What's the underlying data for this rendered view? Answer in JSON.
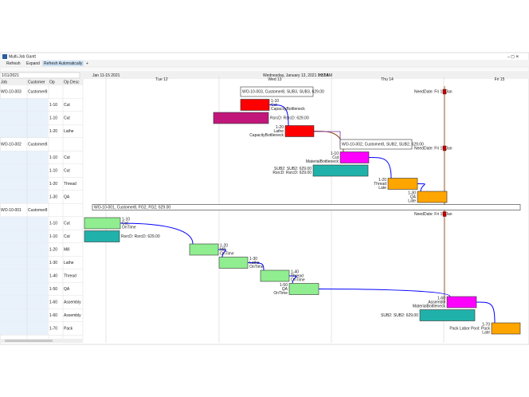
{
  "window": {
    "title": "Multi-Job Gantt"
  },
  "toolbar": [
    "Refresh",
    "Expand",
    "Refresh Automatically",
    "+"
  ],
  "date": "1/11/2021",
  "timeline": {
    "range": "Jan 11-15 2021",
    "days": [
      "Tue 12",
      "Wed 13",
      "Thu 14",
      "Fri 15"
    ],
    "now": "Wednesday, January 13, 2021 9:22 AM",
    "zoom": "Hr:58"
  },
  "grid": {
    "columns": [
      "Job",
      "Customer",
      "Op",
      "Op Desc"
    ],
    "rows": [
      {
        "job": "WO-10-003",
        "customer": "Customer8"
      },
      {
        "op": "1-10",
        "desc": "Cut"
      },
      {
        "op": "1-10",
        "desc": "Cut"
      },
      {
        "op": "1-20",
        "desc": "Lathe"
      },
      {
        "job": "WO-10-002",
        "customer": "Customer8"
      },
      {
        "op": "1-10",
        "desc": "Cut"
      },
      {
        "op": "1-10",
        "desc": "Cut"
      },
      {
        "op": "1-20",
        "desc": "Thread"
      },
      {
        "op": "1-30",
        "desc": "QA"
      },
      {
        "job": "WO-10-001",
        "customer": "Customer8"
      },
      {
        "op": "1-10",
        "desc": "Cut"
      },
      {
        "op": "1-10",
        "desc": "Cut"
      },
      {
        "op": "1-20",
        "desc": "Mill"
      },
      {
        "op": "1-30",
        "desc": "Lathe"
      },
      {
        "op": "1-40",
        "desc": "Thread"
      },
      {
        "op": "1-50",
        "desc": "QA"
      },
      {
        "op": "1-60",
        "desc": "Assembly"
      },
      {
        "op": "1-60",
        "desc": "Assembly"
      },
      {
        "op": "1-70",
        "desc": "Pack"
      }
    ]
  },
  "bars": [
    {
      "lines": [
        "WO-10-003, Customer8, SUB3, SUB3, 629.00"
      ]
    },
    {
      "lines": [
        "1-10",
        "Cut",
        "CapacityBottleneck"
      ]
    },
    {
      "lines": [
        "RsrcD: RsrcD: 629.00"
      ]
    },
    {
      "lines": [
        "1-20",
        "Lathe",
        "CapacityBottleneck"
      ]
    },
    {
      "lines": [
        "WO-10-002, Customer8, SUB2, SUB2, 629.00"
      ]
    },
    {
      "lines": [
        "1-10",
        "Cut",
        "MaterialBottleneck"
      ]
    },
    {
      "lines": [
        "SUB2: SUB2: 629.00",
        "RsrcD: RsrcD: 629.00"
      ]
    },
    {
      "lines": [
        "1-20",
        "Thread",
        "Late"
      ]
    },
    {
      "lines": [
        "1-30",
        "QA",
        "Late"
      ]
    },
    {
      "lines": [
        "WO-10-001, Customer8, FG2, FG2, 629.00"
      ]
    },
    {
      "lines": [
        "1-10",
        "Cut",
        "OnTime"
      ]
    },
    {
      "lines": [
        "RsrcD: RsrcD: 629.00"
      ]
    },
    {
      "lines": [
        "1-20",
        "Mill",
        "OnTime"
      ]
    },
    {
      "lines": [
        "1-30",
        "Lathe",
        "OnTime"
      ]
    },
    {
      "lines": [
        "1-40",
        "Thread",
        "OnTime"
      ]
    },
    {
      "lines": [
        "1-50",
        "QA",
        "OnTime"
      ]
    },
    {
      "lines": [
        "1-60",
        "Assembly",
        "MaterialBottleneck"
      ]
    },
    {
      "lines": [
        "SUB2: SUB2: 629.00"
      ]
    },
    {
      "lines": [
        "1-70",
        "Pack Labor Pool: Pack",
        "Late"
      ]
    }
  ],
  "need_dates": [
    "NeedDate: Fri 15 Jan",
    "NeedDate: Fri 15 Jan",
    "NeedDate: Fri 15 Jan"
  ]
}
